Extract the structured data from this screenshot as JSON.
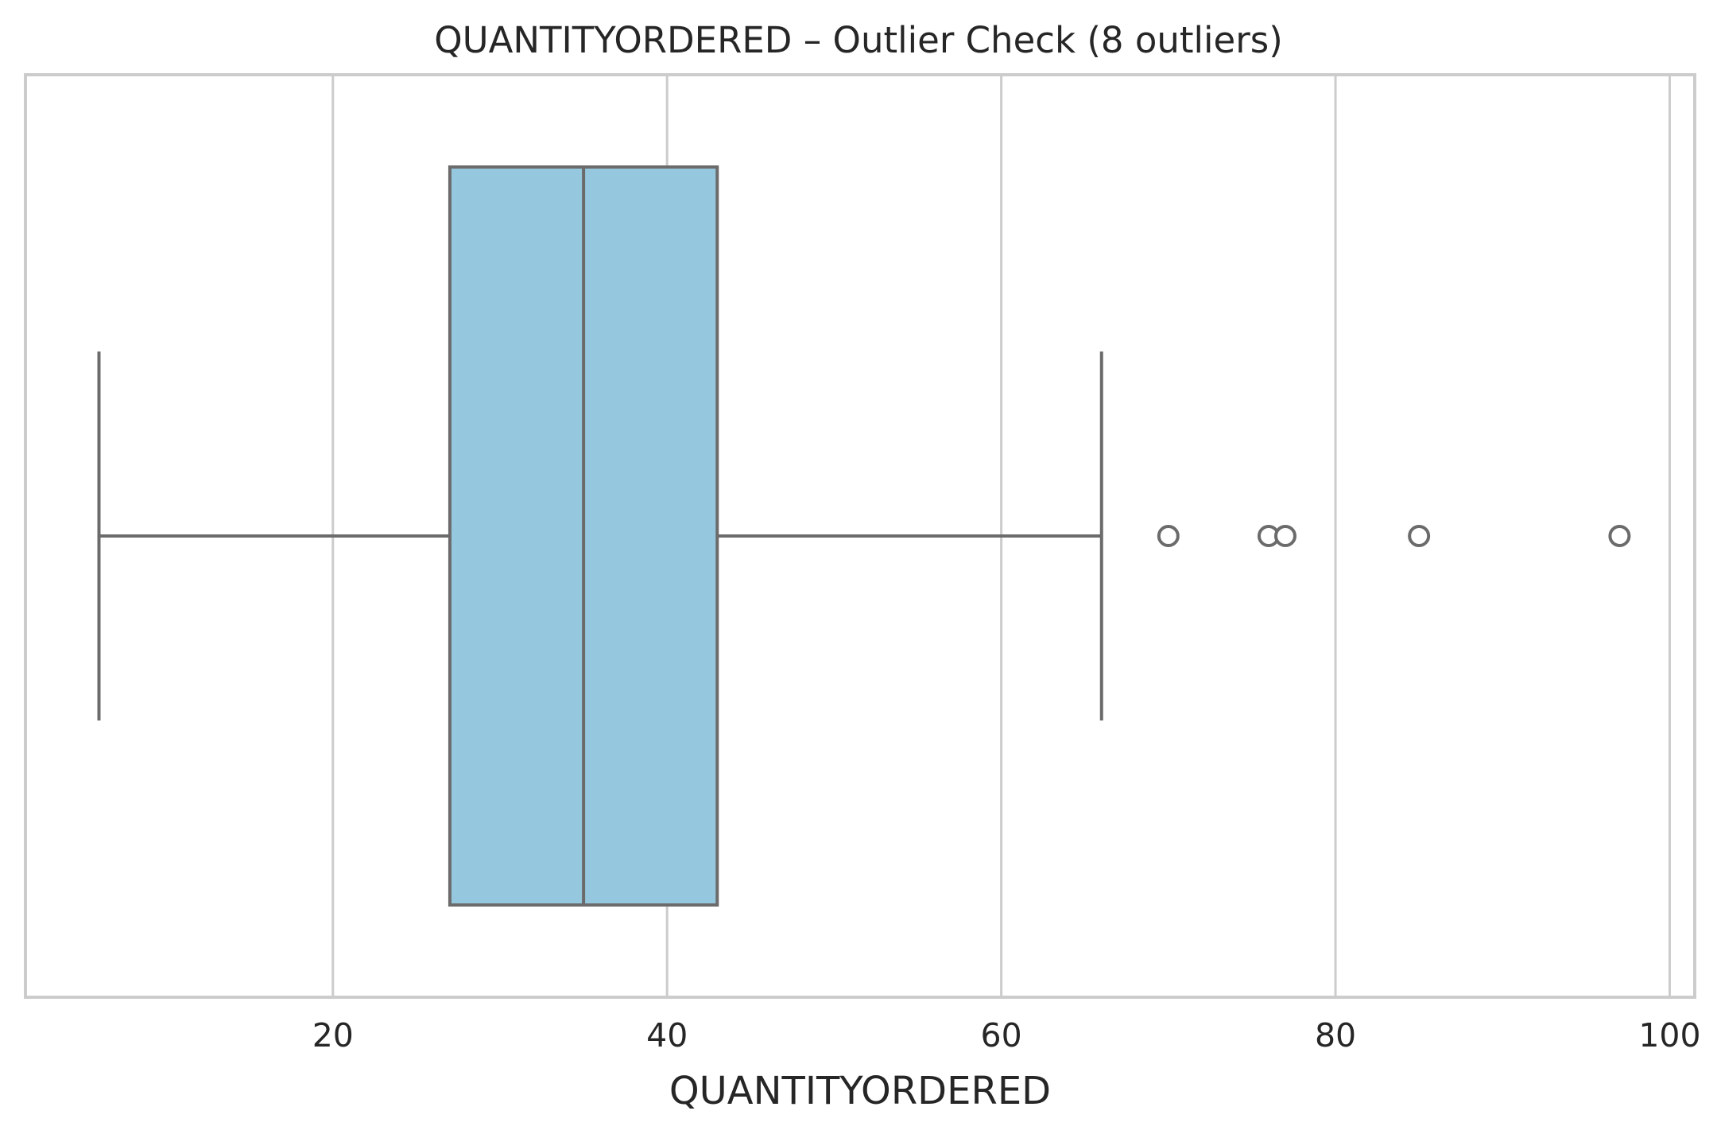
{
  "chart_data": {
    "type": "box",
    "title": "QUANTITYORDERED – Outlier Check (8 outliers)",
    "xlabel": "QUANTITYORDERED",
    "ylabel": "",
    "xlim": [
      1.6,
      101.5
    ],
    "xticks": [
      20,
      40,
      60,
      80,
      100
    ],
    "grid": true,
    "box": {
      "whisker_low": 6,
      "q1": 27,
      "median": 35,
      "q3": 43,
      "whisker_high": 66
    },
    "outliers": [
      70,
      76,
      77,
      85,
      97
    ],
    "colors": {
      "box_fill": "#95c8de",
      "line": "#6b6b6b",
      "grid": "#cccccc",
      "frame": "#cccccc",
      "text": "#262626"
    }
  }
}
